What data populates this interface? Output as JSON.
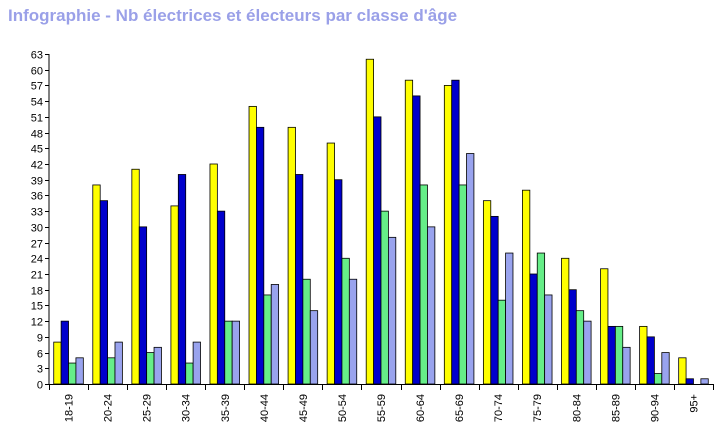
{
  "chart_data": {
    "type": "bar",
    "title": "Infographie - Nb électrices et électeurs par classe d'âge",
    "xlabel": "",
    "ylabel": "",
    "ylim": [
      0,
      63
    ],
    "yticks": [
      0,
      3,
      6,
      9,
      12,
      15,
      18,
      21,
      24,
      27,
      30,
      33,
      36,
      39,
      42,
      45,
      48,
      51,
      54,
      57,
      60,
      63
    ],
    "grid": false,
    "categories": [
      "18-19",
      "20-24",
      "25-29",
      "30-34",
      "35-39",
      "40-44",
      "45-49",
      "50-54",
      "55-59",
      "60-64",
      "65-69",
      "70-74",
      "75-79",
      "80-84",
      "85-89",
      "90-94",
      "95+"
    ],
    "series": [
      {
        "color": "#ffff00",
        "values": [
          8,
          38,
          41,
          34,
          42,
          53,
          49,
          46,
          62,
          58,
          57,
          35,
          37,
          24,
          22,
          11,
          5
        ]
      },
      {
        "color": "#0000cc",
        "values": [
          12,
          35,
          30,
          40,
          33,
          49,
          40,
          39,
          51,
          55,
          58,
          32,
          21,
          18,
          11,
          9,
          1
        ]
      },
      {
        "color": "#66ee88",
        "values": [
          4,
          5,
          6,
          4,
          12,
          17,
          20,
          24,
          33,
          38,
          38,
          16,
          25,
          14,
          11,
          2,
          0
        ]
      },
      {
        "color": "#99a3ee",
        "values": [
          5,
          8,
          7,
          8,
          12,
          19,
          14,
          20,
          28,
          30,
          44,
          25,
          17,
          12,
          7,
          6,
          1
        ]
      }
    ]
  }
}
